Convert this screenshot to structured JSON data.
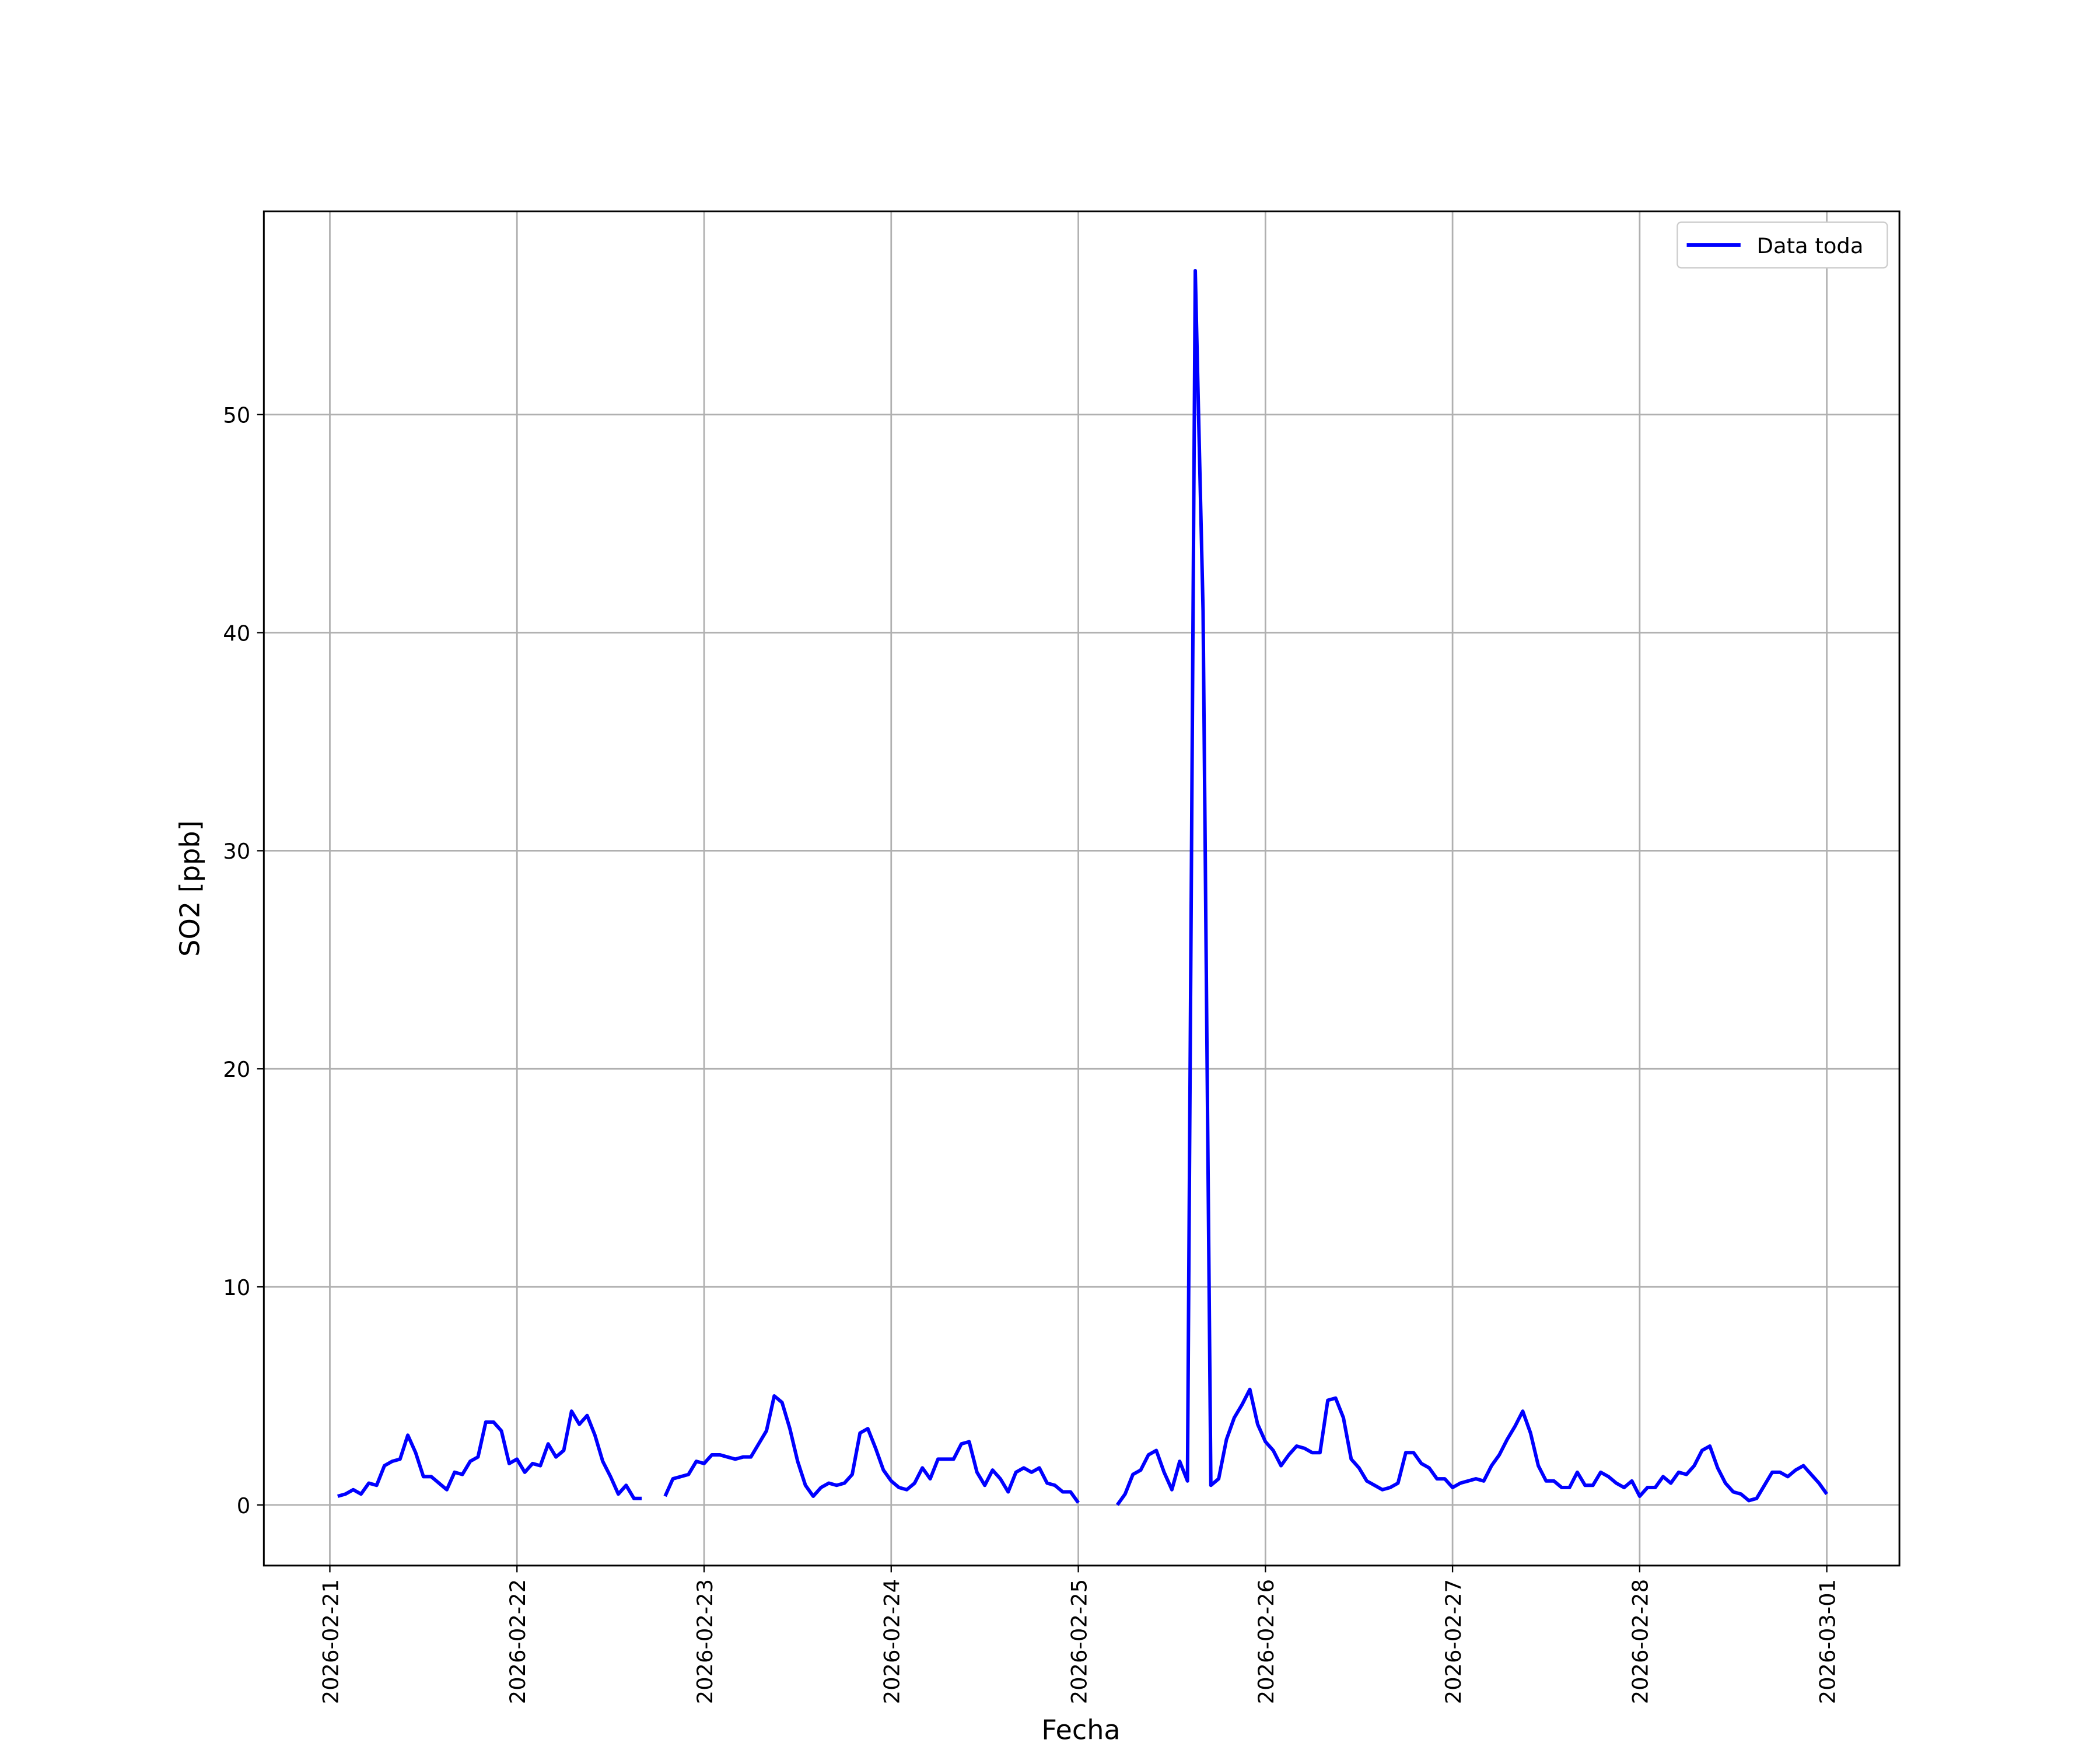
{
  "chart_data": {
    "type": "line",
    "x_label": "Fecha",
    "y_label": "SO2 [ppb]",
    "x": [
      "2026-02-21 01:00",
      "2026-02-21 02:00",
      "2026-02-21 03:00",
      "2026-02-21 04:00",
      "2026-02-21 05:00",
      "2026-02-21 06:00",
      "2026-02-21 07:00",
      "2026-02-21 08:00",
      "2026-02-21 09:00",
      "2026-02-21 10:00",
      "2026-02-21 11:00",
      "2026-02-21 12:00",
      "2026-02-21 13:00",
      "2026-02-21 14:00",
      "2026-02-21 15:00",
      "2026-02-21 16:00",
      "2026-02-21 17:00",
      "2026-02-21 18:00",
      "2026-02-21 19:00",
      "2026-02-21 20:00",
      "2026-02-21 21:00",
      "2026-02-21 22:00",
      "2026-02-21 23:00",
      "2026-02-22 00:00",
      "2026-02-22 01:00",
      "2026-02-22 02:00",
      "2026-02-22 03:00",
      "2026-02-22 04:00",
      "2026-02-22 05:00",
      "2026-02-22 06:00",
      "2026-02-22 07:00",
      "2026-02-22 08:00",
      "2026-02-22 09:00",
      "2026-02-22 10:00",
      "2026-02-22 11:00",
      "2026-02-22 12:00",
      "2026-02-22 13:00",
      "2026-02-22 14:00",
      "2026-02-22 15:00",
      "2026-02-22 16:00",
      "2026-02-22 17:00",
      "2026-02-22 18:00",
      "2026-02-22 19:00",
      "2026-02-22 20:00",
      "2026-02-22 21:00",
      "2026-02-22 22:00",
      "2026-02-22 23:00",
      "2026-02-23 00:00",
      "2026-02-23 01:00",
      "2026-02-23 02:00",
      "2026-02-23 03:00",
      "2026-02-23 04:00",
      "2026-02-23 05:00",
      "2026-02-23 06:00",
      "2026-02-23 07:00",
      "2026-02-23 08:00",
      "2026-02-23 09:00",
      "2026-02-23 10:00",
      "2026-02-23 11:00",
      "2026-02-23 12:00",
      "2026-02-23 13:00",
      "2026-02-23 14:00",
      "2026-02-23 15:00",
      "2026-02-23 16:00",
      "2026-02-23 17:00",
      "2026-02-23 18:00",
      "2026-02-23 19:00",
      "2026-02-23 20:00",
      "2026-02-23 21:00",
      "2026-02-23 22:00",
      "2026-02-23 23:00",
      "2026-02-24 00:00",
      "2026-02-24 01:00",
      "2026-02-24 02:00",
      "2026-02-24 03:00",
      "2026-02-24 04:00",
      "2026-02-24 05:00",
      "2026-02-24 06:00",
      "2026-02-24 07:00",
      "2026-02-24 08:00",
      "2026-02-24 09:00",
      "2026-02-24 10:00",
      "2026-02-24 11:00",
      "2026-02-24 12:00",
      "2026-02-24 13:00",
      "2026-02-24 14:00",
      "2026-02-24 15:00",
      "2026-02-24 16:00",
      "2026-02-24 17:00",
      "2026-02-24 18:00",
      "2026-02-24 19:00",
      "2026-02-24 20:00",
      "2026-02-24 21:00",
      "2026-02-24 22:00",
      "2026-02-24 23:00",
      "2026-02-25 00:00",
      "2026-02-25 01:00",
      "2026-02-25 02:00",
      "2026-02-25 03:00",
      "2026-02-25 04:00",
      "2026-02-25 05:00",
      "2026-02-25 06:00",
      "2026-02-25 07:00",
      "2026-02-25 08:00",
      "2026-02-25 09:00",
      "2026-02-25 10:00",
      "2026-02-25 11:00",
      "2026-02-25 12:00",
      "2026-02-25 13:00",
      "2026-02-25 14:00",
      "2026-02-25 15:00",
      "2026-02-25 16:00",
      "2026-02-25 17:00",
      "2026-02-25 18:00",
      "2026-02-25 19:00",
      "2026-02-25 20:00",
      "2026-02-25 21:00",
      "2026-02-25 22:00",
      "2026-02-25 23:00",
      "2026-02-26 00:00",
      "2026-02-26 01:00",
      "2026-02-26 02:00",
      "2026-02-26 03:00",
      "2026-02-26 04:00",
      "2026-02-26 05:00",
      "2026-02-26 06:00",
      "2026-02-26 07:00",
      "2026-02-26 08:00",
      "2026-02-26 09:00",
      "2026-02-26 10:00",
      "2026-02-26 11:00",
      "2026-02-26 12:00",
      "2026-02-26 13:00",
      "2026-02-26 14:00",
      "2026-02-26 15:00",
      "2026-02-26 16:00",
      "2026-02-26 17:00",
      "2026-02-26 18:00",
      "2026-02-26 19:00",
      "2026-02-26 20:00",
      "2026-02-26 21:00",
      "2026-02-26 22:00",
      "2026-02-26 23:00",
      "2026-02-27 00:00",
      "2026-02-27 01:00",
      "2026-02-27 02:00",
      "2026-02-27 03:00",
      "2026-02-27 04:00",
      "2026-02-27 05:00",
      "2026-02-27 06:00",
      "2026-02-27 07:00",
      "2026-02-27 08:00",
      "2026-02-27 09:00",
      "2026-02-27 10:00",
      "2026-02-27 11:00",
      "2026-02-27 12:00",
      "2026-02-27 13:00",
      "2026-02-27 14:00",
      "2026-02-27 15:00",
      "2026-02-27 16:00",
      "2026-02-27 17:00",
      "2026-02-27 18:00",
      "2026-02-27 19:00",
      "2026-02-27 20:00",
      "2026-02-27 21:00",
      "2026-02-27 22:00",
      "2026-02-27 23:00",
      "2026-02-28 00:00",
      "2026-02-28 01:00",
      "2026-02-28 02:00",
      "2026-02-28 03:00",
      "2026-02-28 04:00",
      "2026-02-28 05:00",
      "2026-02-28 06:00",
      "2026-02-28 07:00",
      "2026-02-28 08:00",
      "2026-02-28 09:00",
      "2026-02-28 10:00",
      "2026-02-28 11:00",
      "2026-02-28 12:00",
      "2026-02-28 13:00",
      "2026-02-28 14:00",
      "2026-02-28 15:00",
      "2026-02-28 16:00",
      "2026-02-28 17:00",
      "2026-02-28 18:00",
      "2026-02-28 19:00",
      "2026-02-28 20:00",
      "2026-02-28 21:00",
      "2026-02-28 22:00",
      "2026-02-28 23:00",
      "2026-03-01 00:00"
    ],
    "series": [
      {
        "name": "Data toda",
        "color": "#0000ff",
        "values": [
          0.4,
          0.5,
          0.7,
          0.5,
          1.0,
          0.9,
          1.8,
          2.0,
          2.1,
          3.2,
          2.4,
          1.3,
          1.3,
          1.0,
          0.7,
          1.5,
          1.4,
          2.0,
          2.2,
          3.8,
          3.8,
          3.4,
          1.9,
          2.1,
          1.5,
          1.9,
          1.8,
          2.8,
          2.2,
          2.5,
          4.3,
          3.7,
          4.1,
          3.2,
          2.0,
          1.3,
          0.5,
          0.9,
          0.3,
          0.3,
          null,
          null,
          0.4,
          1.2,
          1.3,
          1.4,
          2.0,
          1.9,
          2.3,
          2.3,
          2.2,
          2.1,
          2.2,
          2.2,
          2.8,
          3.4,
          5.0,
          4.7,
          3.5,
          2.0,
          0.9,
          0.4,
          0.8,
          1.0,
          0.9,
          1.0,
          1.4,
          3.3,
          3.5,
          2.6,
          1.6,
          1.1,
          0.8,
          0.7,
          1.0,
          1.7,
          1.2,
          2.1,
          2.1,
          2.1,
          2.8,
          2.9,
          1.5,
          0.9,
          1.6,
          1.2,
          0.6,
          1.5,
          1.7,
          1.5,
          1.7,
          1.0,
          0.9,
          0.6,
          0.6,
          0.1,
          null,
          null,
          null,
          null,
          0.0,
          0.5,
          1.4,
          1.6,
          2.3,
          2.5,
          1.5,
          0.7,
          2.0,
          1.1,
          56.6,
          41,
          0.9,
          1.2,
          3.0,
          4.0,
          4.6,
          5.3,
          3.7,
          2.9,
          2.5,
          1.8,
          2.3,
          2.7,
          2.6,
          2.4,
          2.4,
          4.8,
          4.9,
          4.0,
          2.1,
          1.7,
          1.1,
          0.9,
          0.7,
          0.8,
          1.0,
          2.4,
          2.4,
          1.9,
          1.7,
          1.2,
          1.2,
          0.8,
          1.0,
          1.1,
          1.2,
          1.1,
          1.8,
          2.3,
          3.0,
          3.6,
          4.3,
          3.3,
          1.8,
          1.1,
          1.1,
          0.8,
          0.8,
          1.5,
          0.9,
          0.9,
          1.5,
          1.3,
          1.0,
          0.8,
          1.1,
          0.4,
          0.8,
          0.8,
          1.3,
          1.0,
          1.5,
          1.4,
          1.8,
          2.5,
          2.7,
          1.7,
          1.0,
          0.6,
          0.5,
          0.2,
          0.3,
          0.9,
          1.5,
          1.5,
          1.3,
          1.6,
          1.8,
          1.4,
          1.0,
          0.5
        ]
      }
    ],
    "xlim": [
      "2026-02-20 15:32",
      "2026-03-01 09:19"
    ],
    "xticks": [
      "2026-02-21",
      "2026-02-22",
      "2026-02-23",
      "2026-02-24",
      "2026-02-25",
      "2026-02-26",
      "2026-02-27",
      "2026-02-28",
      "2026-03-01"
    ],
    "ylim": [
      -2.78,
      59.32
    ],
    "yticks": [
      0,
      10,
      20,
      30,
      40,
      50
    ],
    "grid": true,
    "legend": "upper right"
  }
}
